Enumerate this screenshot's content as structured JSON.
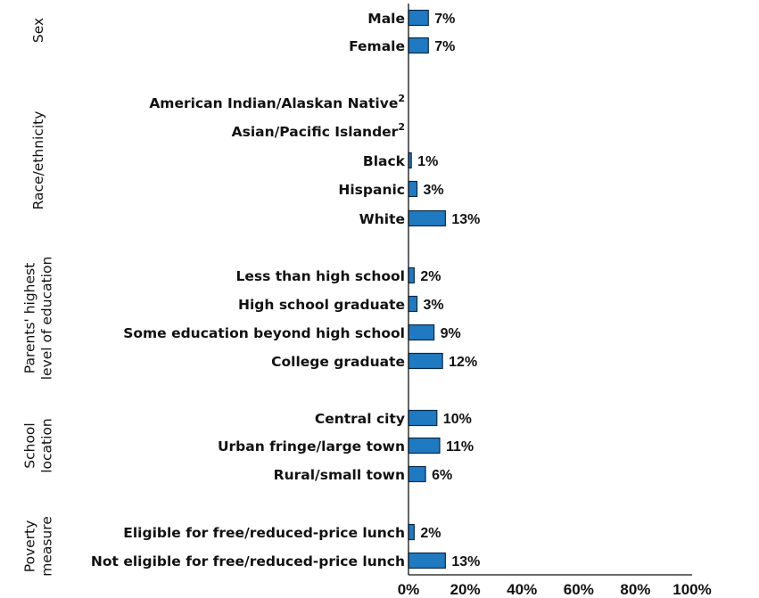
{
  "chart_data": {
    "type": "bar",
    "orientation": "horizontal",
    "bar_color": "#1f7ac2",
    "bar_edge_color": "#0a2a4a",
    "xlim": [
      0,
      100
    ],
    "x_ticks": [
      "0%",
      "20%",
      "40%",
      "60%",
      "80%",
      "100%"
    ],
    "groups": [
      {
        "name_lines": [
          "Sex"
        ],
        "rows": [
          {
            "label": "Male",
            "value": 7,
            "value_label": "7%"
          },
          {
            "label": "Female",
            "value": 7,
            "value_label": "7%"
          }
        ]
      },
      {
        "name_lines": [
          "Race/ethnicity"
        ],
        "rows": [
          {
            "label": "American Indian/Alaskan Native",
            "superscript": "2",
            "value": null,
            "value_label": ""
          },
          {
            "label": "Asian/Pacific Islander",
            "superscript": "2",
            "value": null,
            "value_label": ""
          },
          {
            "label": "Black",
            "value": 1,
            "value_label": "1%"
          },
          {
            "label": "Hispanic",
            "value": 3,
            "value_label": "3%"
          },
          {
            "label": "White",
            "value": 13,
            "value_label": "13%"
          }
        ]
      },
      {
        "name_lines": [
          "Parents' highest",
          "level of education"
        ],
        "rows": [
          {
            "label": "Less than high school",
            "value": 2,
            "value_label": "2%"
          },
          {
            "label": "High school graduate",
            "value": 3,
            "value_label": "3%"
          },
          {
            "label": "Some education beyond high school",
            "value": 9,
            "value_label": "9%"
          },
          {
            "label": "College graduate",
            "value": 12,
            "value_label": "12%"
          }
        ]
      },
      {
        "name_lines": [
          "School",
          "location"
        ],
        "rows": [
          {
            "label": "Central city",
            "value": 10,
            "value_label": "10%"
          },
          {
            "label": "Urban fringe/large town",
            "value": 11,
            "value_label": "11%"
          },
          {
            "label": "Rural/small town",
            "value": 6,
            "value_label": "6%"
          }
        ]
      },
      {
        "name_lines": [
          "Poverty",
          "measure"
        ],
        "rows": [
          {
            "label": "Eligible for free/reduced-price lunch",
            "value": 2,
            "value_label": "2%"
          },
          {
            "label": "Not eligible for free/reduced-price lunch",
            "value": 13,
            "value_label": "13%"
          }
        ]
      }
    ]
  }
}
